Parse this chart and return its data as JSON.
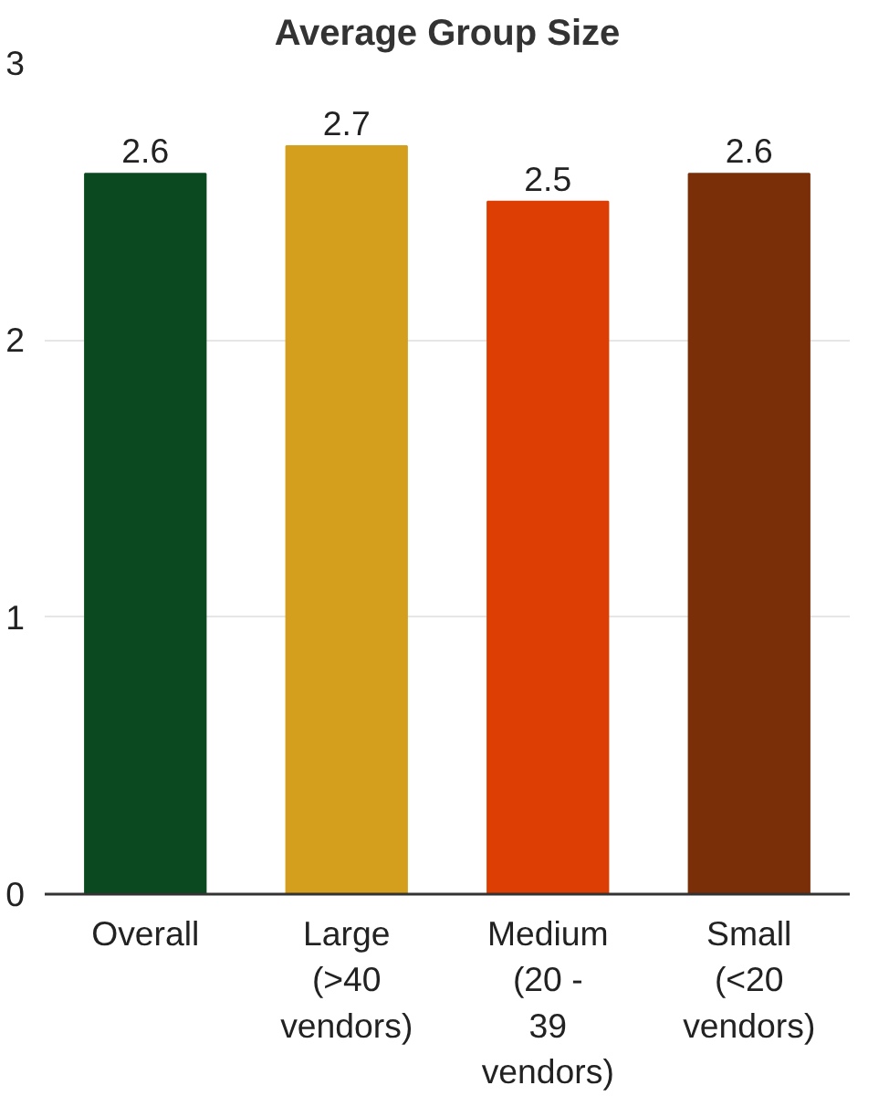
{
  "chart_data": {
    "type": "bar",
    "title": "Average Group Size",
    "categories": [
      "Overall",
      "Large (>40 vendors)",
      "Medium (20 - 39 vendors)",
      "Small (<20 vendors)"
    ],
    "values": [
      2.6,
      2.7,
      2.5,
      2.6
    ],
    "colors": [
      "#0b4a20",
      "#d49f1c",
      "#dd3e04",
      "#7a2f09"
    ],
    "ylim": [
      0,
      3
    ],
    "yticks": [
      0,
      1,
      2,
      3
    ],
    "grid": "y",
    "data_labels": true
  }
}
